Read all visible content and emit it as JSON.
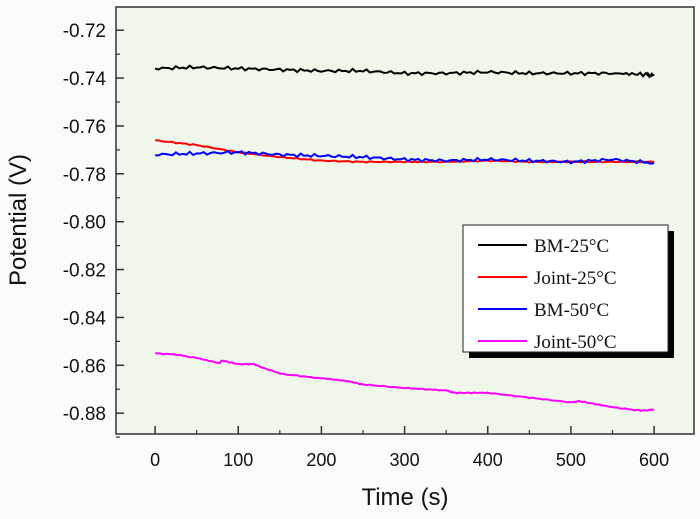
{
  "chart_data": {
    "type": "line",
    "title": "",
    "xlabel": "Time (s)",
    "ylabel": "Potential (V)",
    "xlim": [
      -47,
      648
    ],
    "ylim": [
      -0.8887,
      -0.7103
    ],
    "xticks": [
      0,
      100,
      200,
      300,
      400,
      500,
      600
    ],
    "xtick_labels": [
      "0",
      "100",
      "200",
      "300",
      "400",
      "500",
      "600"
    ],
    "yticks": [
      -0.72,
      -0.74,
      -0.76,
      -0.78,
      -0.8,
      -0.82,
      -0.84,
      -0.86,
      -0.88
    ],
    "ytick_labels": [
      "-0.72",
      "-0.74",
      "-0.76",
      "-0.78",
      "-0.80",
      "-0.82",
      "-0.84",
      "-0.86",
      "-0.88"
    ],
    "grid": false,
    "legend_position": "center-right",
    "background": "#eef7e9",
    "series": [
      {
        "name": "BM-25°C",
        "color": "#000000",
        "x": [
          0,
          50,
          100,
          150,
          200,
          250,
          300,
          350,
          400,
          450,
          500,
          550,
          590,
          600
        ],
        "y": [
          -0.736,
          -0.7355,
          -0.736,
          -0.7365,
          -0.737,
          -0.737,
          -0.738,
          -0.738,
          -0.7375,
          -0.738,
          -0.738,
          -0.738,
          -0.7385,
          -0.739
        ]
      },
      {
        "name": "Joint-25°C",
        "color": "#ff0000",
        "x": [
          0,
          50,
          100,
          150,
          200,
          250,
          300,
          350,
          400,
          450,
          500,
          550,
          600
        ],
        "y": [
          -0.766,
          -0.768,
          -0.771,
          -0.773,
          -0.7745,
          -0.775,
          -0.775,
          -0.775,
          -0.7745,
          -0.775,
          -0.775,
          -0.775,
          -0.775
        ]
      },
      {
        "name": "BM-50°C",
        "color": "#0000ff",
        "x": [
          0,
          50,
          100,
          150,
          200,
          250,
          300,
          350,
          400,
          450,
          500,
          550,
          600
        ],
        "y": [
          -0.772,
          -0.7715,
          -0.771,
          -0.772,
          -0.7725,
          -0.773,
          -0.774,
          -0.7745,
          -0.774,
          -0.7745,
          -0.775,
          -0.774,
          -0.7755
        ]
      },
      {
        "name": "Joint-50°C",
        "color": "#ff00ff",
        "x": [
          0,
          25,
          50,
          78,
          80,
          100,
          118,
          150,
          200,
          230,
          250,
          300,
          350,
          360,
          400,
          450,
          500,
          510,
          550,
          585,
          600
        ],
        "y": [
          -0.855,
          -0.8555,
          -0.857,
          -0.859,
          -0.858,
          -0.8595,
          -0.8595,
          -0.8635,
          -0.8655,
          -0.8665,
          -0.868,
          -0.8695,
          -0.8705,
          -0.8715,
          -0.8715,
          -0.8735,
          -0.8755,
          -0.875,
          -0.8775,
          -0.879,
          -0.8785
        ]
      }
    ]
  }
}
